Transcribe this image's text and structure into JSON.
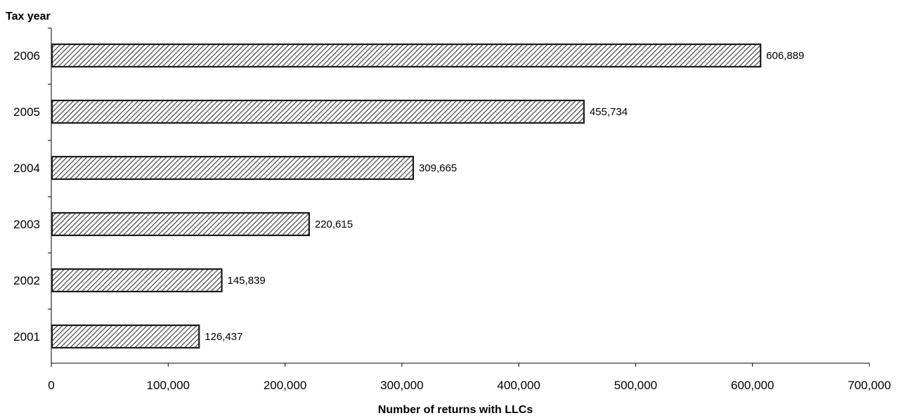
{
  "chart_data": {
    "type": "bar",
    "orientation": "horizontal",
    "title": "",
    "ylabel": "Tax year",
    "xlabel": "Number of returns with LLCs",
    "categories": [
      "2006",
      "2005",
      "2004",
      "2003",
      "2002",
      "2001"
    ],
    "values": [
      606889,
      455734,
      309665,
      220615,
      145839,
      126437
    ],
    "data_labels": [
      "606,889",
      "455,734",
      "309,665",
      "220,615",
      "145,839",
      "126,437"
    ],
    "xlim": [
      0,
      700000
    ],
    "x_ticks": [
      0,
      100000,
      200000,
      300000,
      400000,
      500000,
      600000,
      700000
    ],
    "x_tick_labels": [
      "0",
      "100,000",
      "200,000",
      "300,000",
      "400,000",
      "500,000",
      "600,000",
      "700,000"
    ],
    "grid": false,
    "legend": "none",
    "bar_fill": "diagonal-hatch",
    "colors": {
      "bar_stroke": "#1a1a1a",
      "hatch": "#444444",
      "background": "#ffffff"
    }
  }
}
